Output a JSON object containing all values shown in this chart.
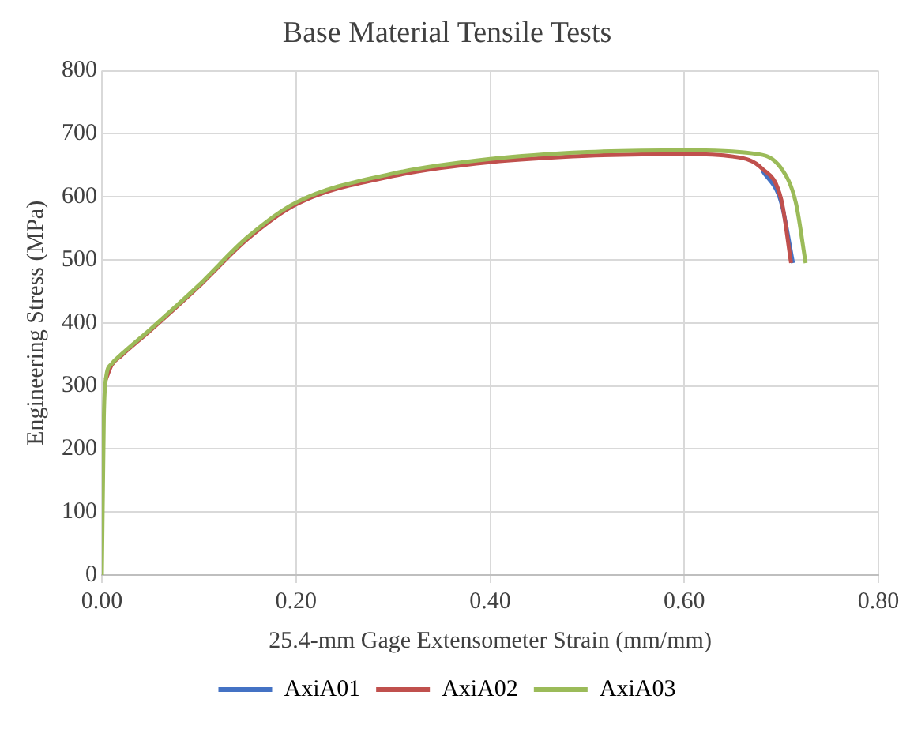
{
  "chart_data": {
    "type": "line",
    "title": "Base Material Tensile Tests",
    "xlabel": "25.4-mm Gage Extensometer Strain (mm/mm)",
    "ylabel": "Engineering Stress (MPa)",
    "xlim": [
      0,
      0.8
    ],
    "xticks": [
      {
        "value": 0,
        "label": "0.00"
      },
      {
        "value": 0.2,
        "label": "0.20"
      },
      {
        "value": 0.4,
        "label": "0.40"
      },
      {
        "value": 0.6,
        "label": "0.60"
      },
      {
        "value": 0.8,
        "label": "0.80"
      }
    ],
    "ylim": [
      0,
      800
    ],
    "yticks": [
      0,
      100,
      200,
      300,
      400,
      500,
      600,
      700,
      800
    ],
    "grid": true,
    "legend": "bottom",
    "marker": "none",
    "line_style": "solid",
    "series": [
      {
        "name": "AxiA01",
        "color": "#4472c4",
        "x": [
          0.68,
          0.7,
          0.712
        ],
        "values": [
          643,
          590,
          495
        ]
      },
      {
        "name": "AxiA02",
        "color": "#c0504d",
        "x": [
          0.004,
          0.01,
          0.02,
          0.05,
          0.1,
          0.15,
          0.2,
          0.3,
          0.4,
          0.5,
          0.6,
          0.65,
          0.68,
          0.7,
          0.71
        ],
        "values": [
          310,
          333,
          348,
          388,
          458,
          533,
          588,
          633,
          655,
          665,
          668,
          664,
          645,
          595,
          495
        ]
      },
      {
        "name": "AxiA03",
        "color": "#9bbb59",
        "x": [
          0,
          0.002,
          0.004,
          0.01,
          0.02,
          0.05,
          0.1,
          0.15,
          0.2,
          0.3,
          0.4,
          0.5,
          0.6,
          0.67,
          0.7,
          0.715,
          0.725
        ],
        "values": [
          0,
          250,
          310,
          335,
          350,
          390,
          460,
          536,
          591,
          637,
          660,
          671,
          674,
          669,
          645,
          590,
          495
        ]
      }
    ]
  }
}
